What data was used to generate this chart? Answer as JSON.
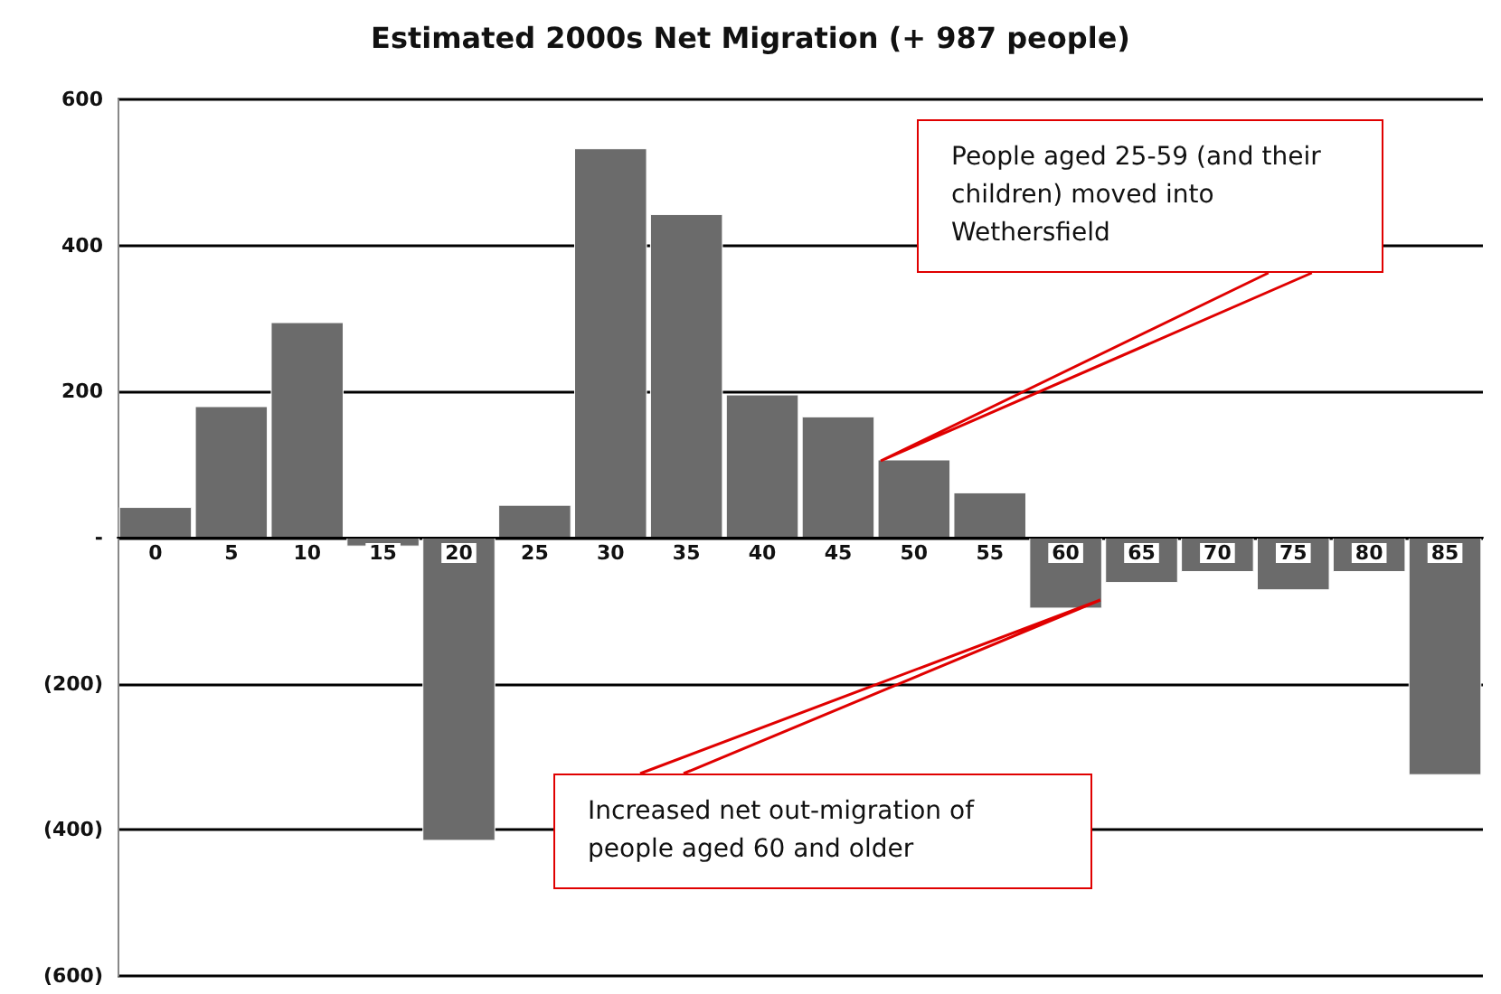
{
  "chart_data": {
    "type": "bar",
    "title": "Estimated 2000s Net Migration (+ 987 people)",
    "categories": [
      "0",
      "5",
      "10",
      "15",
      "20",
      "25",
      "30",
      "35",
      "40",
      "45",
      "50",
      "55",
      "60",
      "65",
      "70",
      "75",
      "80",
      "85"
    ],
    "values": [
      42,
      180,
      295,
      -12,
      -415,
      45,
      533,
      443,
      196,
      166,
      107,
      62,
      -97,
      -62,
      -47,
      -72,
      -47,
      -325
    ],
    "color": "#6b6b6b",
    "ylim": [
      -600,
      600
    ],
    "yticks": [
      {
        "value": -600,
        "label": "(600)"
      },
      {
        "value": -400,
        "label": "(400)"
      },
      {
        "value": -200,
        "label": "(200)"
      },
      {
        "value": 0,
        "label": "-"
      },
      600,
      400,
      200
    ],
    "grid": "y",
    "annotations": [
      "People aged 25-59 (and their children) moved into Wethersfield",
      "Increased net out-migration of people aged 60 and older"
    ]
  }
}
